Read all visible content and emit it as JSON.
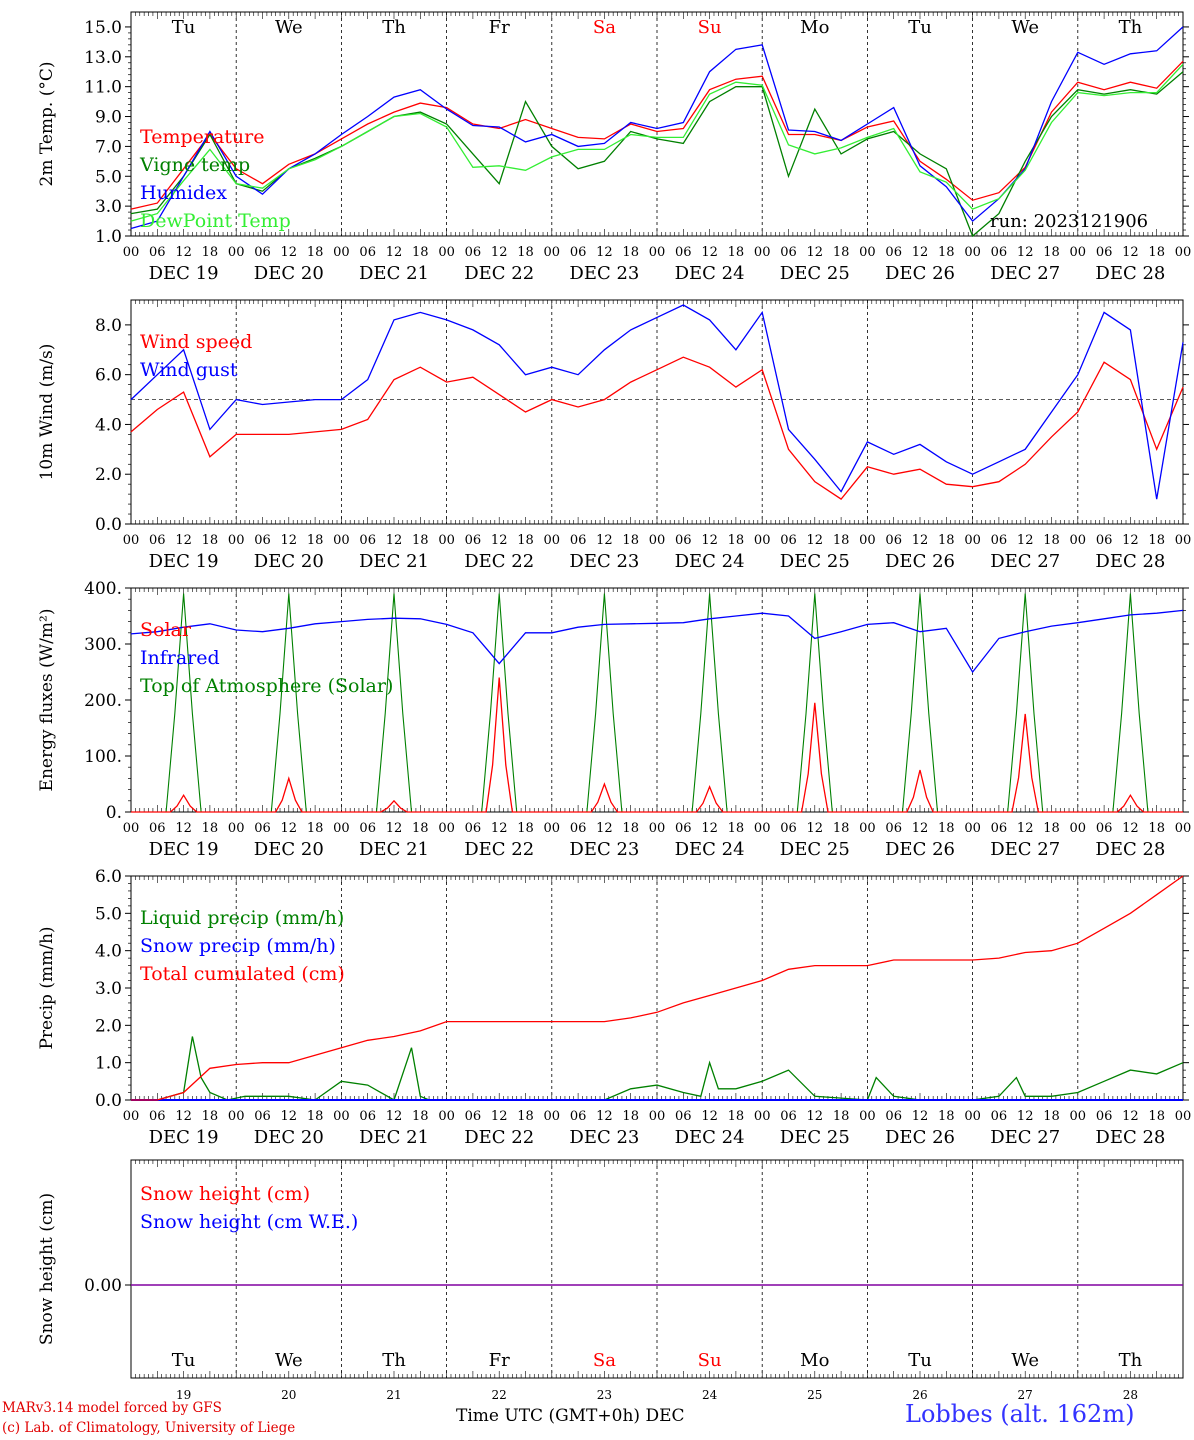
{
  "footer": {
    "model_line": "MARv3.14 model forced by GFS",
    "credit_line": "(c) Lab. of Climatology, University of Liege",
    "xlabel": "Time UTC (GMT+0h) DEC",
    "station": "Lobbes (alt. 162m)"
  },
  "axis": {
    "hour_ticks": [
      "00",
      "06",
      "12",
      "18"
    ],
    "final_tick": "00",
    "dates": [
      "DEC 19",
      "DEC 20",
      "DEC 21",
      "DEC 22",
      "DEC 23",
      "DEC 24",
      "DEC 25",
      "DEC 26",
      "DEC 27",
      "DEC 28"
    ],
    "weekdays": [
      "Tu",
      "We",
      "Th",
      "Fr",
      "Sa",
      "Su",
      "Mo",
      "Tu",
      "We",
      "Th"
    ],
    "weekend_color": "#ff0000",
    "weekend_days": [
      4,
      5
    ],
    "day_numbers": [
      "19",
      "20",
      "21",
      "22",
      "23",
      "24",
      "25",
      "26",
      "27",
      "28"
    ],
    "hours_per_day": 24
  },
  "chart_data": [
    {
      "type": "line",
      "ylabel": "2m Temp. (°C)",
      "ylim": [
        1,
        16
      ],
      "yticks": [
        "1.0",
        "3.0",
        "5.0",
        "7.0",
        "9.0",
        "11.0",
        "13.0",
        "15.0"
      ],
      "annotation": "run: 2023121906",
      "series": [
        {
          "name": "Temperature",
          "color": "#ff0000",
          "x": [
            0,
            6,
            12,
            18,
            24,
            30,
            36,
            42,
            48,
            54,
            60,
            66,
            72,
            78,
            84,
            90,
            96,
            102,
            108,
            114,
            120,
            126,
            132,
            138,
            144,
            150,
            156,
            162,
            168,
            174,
            180,
            186,
            192,
            198,
            204,
            210,
            216,
            222,
            228,
            234,
            240
          ],
          "y": [
            2.8,
            3.2,
            5.5,
            7.8,
            5.5,
            4.5,
            5.8,
            6.5,
            7.5,
            8.5,
            9.3,
            9.9,
            9.6,
            8.5,
            8.2,
            8.8,
            8.2,
            7.6,
            7.5,
            8.5,
            8.0,
            8.2,
            10.8,
            11.5,
            11.7,
            7.8,
            7.8,
            7.4,
            8.3,
            8.7,
            6.0,
            4.8,
            3.4,
            3.9,
            5.6,
            9.3,
            11.3,
            10.8,
            11.3,
            10.9,
            12.7
          ]
        },
        {
          "name": "Vigne temp",
          "color": "#008000",
          "x": [
            0,
            6,
            12,
            18,
            24,
            30,
            36,
            42,
            48,
            54,
            60,
            66,
            72,
            78,
            84,
            90,
            96,
            102,
            108,
            114,
            120,
            126,
            132,
            138,
            144,
            150,
            156,
            162,
            168,
            174,
            180,
            186,
            192,
            198,
            204,
            210,
            216,
            222,
            228,
            234,
            240
          ],
          "y": [
            2.5,
            2.8,
            5.0,
            7.8,
            4.5,
            4.0,
            5.5,
            6.2,
            7.0,
            8.0,
            9.0,
            9.3,
            8.5,
            6.5,
            4.5,
            10.0,
            7.0,
            5.5,
            6.0,
            8.0,
            7.5,
            7.2,
            10.0,
            11.0,
            11.0,
            5.0,
            9.5,
            6.5,
            7.5,
            8.0,
            6.5,
            5.5,
            1.0,
            2.5,
            6.0,
            9.0,
            10.8,
            10.5,
            10.8,
            10.5,
            12.0
          ]
        },
        {
          "name": "Humidex",
          "color": "#0000ff",
          "x": [
            0,
            6,
            12,
            18,
            24,
            30,
            36,
            42,
            48,
            54,
            60,
            66,
            72,
            78,
            84,
            90,
            96,
            102,
            108,
            114,
            120,
            126,
            132,
            138,
            144,
            150,
            156,
            162,
            168,
            174,
            180,
            186,
            192,
            198,
            204,
            210,
            216,
            222,
            228,
            234,
            240
          ],
          "y": [
            1.5,
            2.0,
            5.0,
            8.0,
            5.0,
            3.8,
            5.5,
            6.5,
            7.8,
            9.0,
            10.3,
            10.8,
            9.5,
            8.4,
            8.3,
            7.3,
            7.8,
            7.0,
            7.2,
            8.6,
            8.2,
            8.6,
            12.0,
            13.5,
            13.8,
            8.1,
            8.0,
            7.4,
            8.5,
            9.6,
            5.7,
            4.3,
            2.0,
            3.5,
            5.5,
            10.0,
            13.3,
            12.5,
            13.2,
            13.4,
            15.0
          ]
        },
        {
          "name": "DewPoint Temp",
          "color": "#33ee33",
          "x": [
            0,
            6,
            12,
            18,
            24,
            30,
            36,
            42,
            48,
            54,
            60,
            66,
            72,
            78,
            84,
            90,
            96,
            102,
            108,
            114,
            120,
            126,
            132,
            138,
            144,
            150,
            156,
            162,
            168,
            174,
            180,
            186,
            192,
            198,
            204,
            210,
            216,
            222,
            228,
            234,
            240
          ],
          "y": [
            2.0,
            2.5,
            4.7,
            6.8,
            4.5,
            4.2,
            5.5,
            6.1,
            7.0,
            8.0,
            9.0,
            9.2,
            8.3,
            5.6,
            5.7,
            5.4,
            6.3,
            6.8,
            6.8,
            7.8,
            7.6,
            7.6,
            10.5,
            11.3,
            11.1,
            7.1,
            6.5,
            6.9,
            7.6,
            8.2,
            5.3,
            4.6,
            2.8,
            3.5,
            5.4,
            8.6,
            10.6,
            10.4,
            10.6,
            10.6,
            12.5
          ]
        }
      ]
    },
    {
      "type": "line",
      "ylabel": "10m Wind (m/s)",
      "ylim": [
        0,
        9
      ],
      "yticks": [
        "0.0",
        "2.0",
        "4.0",
        "6.0",
        "8.0"
      ],
      "reference_line": 5,
      "series": [
        {
          "name": "Wind speed",
          "color": "#ff0000",
          "x": [
            0,
            6,
            12,
            18,
            24,
            30,
            36,
            42,
            48,
            54,
            60,
            66,
            72,
            78,
            84,
            90,
            96,
            102,
            108,
            114,
            120,
            126,
            132,
            138,
            144,
            150,
            156,
            162,
            168,
            174,
            180,
            186,
            192,
            198,
            204,
            210,
            216,
            222,
            228,
            234,
            240
          ],
          "y": [
            3.7,
            4.6,
            5.3,
            2.7,
            3.6,
            3.6,
            3.6,
            3.7,
            3.8,
            4.2,
            5.8,
            6.3,
            5.7,
            5.9,
            5.2,
            4.5,
            5.0,
            4.7,
            5.0,
            5.7,
            6.2,
            6.7,
            6.3,
            5.5,
            6.2,
            3.0,
            1.7,
            1.0,
            2.3,
            2.0,
            2.2,
            1.6,
            1.5,
            1.7,
            2.4,
            3.5,
            4.5,
            6.5,
            5.8,
            3.0,
            5.5
          ]
        },
        {
          "name": "Wind gust",
          "color": "#0000ff",
          "x": [
            0,
            6,
            12,
            18,
            24,
            30,
            36,
            42,
            48,
            54,
            60,
            66,
            72,
            78,
            84,
            90,
            96,
            102,
            108,
            114,
            120,
            126,
            132,
            138,
            144,
            150,
            156,
            162,
            168,
            174,
            180,
            186,
            192,
            198,
            204,
            210,
            216,
            222,
            228,
            234,
            240
          ],
          "y": [
            5.0,
            6.0,
            7.0,
            3.8,
            5.0,
            4.8,
            4.9,
            5.0,
            5.0,
            5.8,
            8.2,
            8.5,
            8.2,
            7.8,
            7.2,
            6.0,
            6.3,
            6.0,
            7.0,
            7.8,
            8.3,
            8.8,
            8.2,
            7.0,
            8.5,
            3.8,
            2.6,
            1.3,
            3.3,
            2.8,
            3.2,
            2.5,
            2.0,
            2.5,
            3.0,
            4.5,
            6.0,
            8.5,
            7.8,
            1.0,
            7.3
          ]
        }
      ]
    },
    {
      "type": "line",
      "ylabel": "Energy fluxes (W/m²)",
      "ylim": [
        0,
        400
      ],
      "yticks": [
        "0.",
        "100.",
        "200.",
        "300.",
        "400."
      ],
      "series": [
        {
          "name": "Solar",
          "color": "#ff0000",
          "peaks": [
            30,
            60,
            20,
            240,
            50,
            45,
            195,
            75,
            175,
            30
          ]
        },
        {
          "name": "Infrared",
          "color": "#0000ff",
          "x": [
            0,
            6,
            12,
            18,
            24,
            30,
            36,
            42,
            48,
            54,
            60,
            66,
            72,
            78,
            84,
            90,
            96,
            102,
            108,
            114,
            120,
            126,
            132,
            138,
            144,
            150,
            156,
            162,
            168,
            174,
            180,
            186,
            192,
            198,
            204,
            210,
            216,
            222,
            228,
            234,
            240
          ],
          "y": [
            318,
            322,
            330,
            336,
            325,
            322,
            328,
            336,
            340,
            344,
            346,
            345,
            335,
            320,
            265,
            320,
            320,
            330,
            335,
            336,
            337,
            338,
            345,
            350,
            355,
            350,
            310,
            322,
            335,
            338,
            322,
            328,
            250,
            310,
            322,
            332,
            338,
            345,
            352,
            355,
            360
          ]
        },
        {
          "name": "Top of Atmosphere (Solar)",
          "color": "#008000",
          "peak": 390,
          "rise_hour": 8,
          "set_hour": 16
        }
      ]
    },
    {
      "type": "line",
      "ylabel": "Precip (mm/h)",
      "ylim": [
        0,
        6
      ],
      "yticks": [
        "0.0",
        "1.0",
        "2.0",
        "3.0",
        "4.0",
        "5.0",
        "6.0"
      ],
      "series": [
        {
          "name": "Liquid precip (mm/h)",
          "color": "#008000",
          "x": [
            0,
            6,
            12,
            14,
            16,
            18,
            22,
            26,
            36,
            42,
            48,
            54,
            60,
            64,
            66,
            68,
            72,
            84,
            96,
            108,
            114,
            120,
            126,
            130,
            132,
            134,
            138,
            144,
            150,
            156,
            168,
            170,
            174,
            180,
            192,
            198,
            202,
            204,
            210,
            216,
            222,
            228,
            234,
            240
          ],
          "y": [
            0,
            0,
            0.2,
            1.7,
            0.6,
            0.2,
            0,
            0.1,
            0.1,
            0,
            0.5,
            0.4,
            0,
            1.4,
            0.1,
            0,
            0,
            0,
            0,
            0,
            0.3,
            0.4,
            0.2,
            0.1,
            1.0,
            0.3,
            0.3,
            0.5,
            0.8,
            0.1,
            0,
            0.6,
            0.1,
            0,
            0,
            0.1,
            0.6,
            0.1,
            0.1,
            0.2,
            0.5,
            0.8,
            0.7,
            1.0
          ]
        },
        {
          "name": "Snow precip (mm/h)",
          "color": "#0000ff",
          "x": [
            0,
            240
          ],
          "y": [
            0,
            0
          ]
        },
        {
          "name": "Total cumulated (cm)",
          "color": "#ff0000",
          "x": [
            0,
            6,
            12,
            18,
            24,
            30,
            36,
            42,
            48,
            54,
            60,
            66,
            72,
            84,
            96,
            108,
            114,
            120,
            126,
            132,
            138,
            144,
            150,
            156,
            162,
            168,
            174,
            180,
            186,
            192,
            198,
            204,
            210,
            216,
            222,
            228,
            234,
            240
          ],
          "y": [
            0,
            0,
            0.2,
            0.85,
            0.95,
            1.0,
            1.0,
            1.2,
            1.4,
            1.6,
            1.7,
            1.85,
            2.1,
            2.1,
            2.1,
            2.1,
            2.2,
            2.35,
            2.6,
            2.8,
            3.0,
            3.2,
            3.5,
            3.6,
            3.6,
            3.6,
            3.75,
            3.75,
            3.75,
            3.75,
            3.8,
            3.95,
            4.0,
            4.2,
            4.6,
            5.0,
            5.5,
            6.0
          ]
        }
      ]
    },
    {
      "type": "line",
      "ylabel": "Snow height (cm)",
      "yticks": [
        "0.00"
      ],
      "series": [
        {
          "name": "Snow height (cm)",
          "color": "#ff0000",
          "x": [
            0,
            240
          ],
          "y": [
            0,
            0
          ]
        },
        {
          "name": "Snow height (cm W.E.)",
          "color": "#0000ff",
          "x": [
            0,
            240
          ],
          "y": [
            0,
            0
          ]
        }
      ]
    }
  ]
}
